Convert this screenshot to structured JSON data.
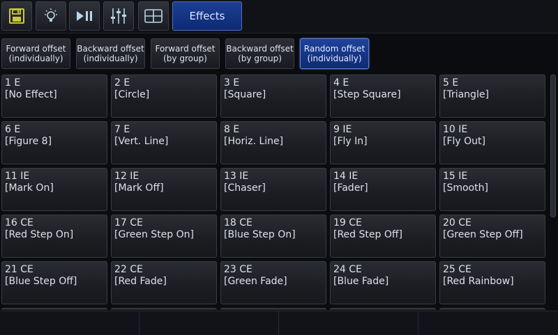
{
  "toolbar": {
    "buttons": [
      {
        "icon": "floppy-disk-icon"
      },
      {
        "icon": "lightbulb-icon"
      },
      {
        "icon": "play-pause-icon"
      },
      {
        "icon": "sliders-icon"
      },
      {
        "icon": "grid-layout-icon"
      }
    ],
    "effects_label": "Effects"
  },
  "offsets": [
    {
      "line1": "Forward offset",
      "line2": "(individually)",
      "active": false
    },
    {
      "line1": "Backward offset",
      "line2": "(individually)",
      "active": false
    },
    {
      "line1": "Forward offset",
      "line2": "(by group)",
      "active": false
    },
    {
      "line1": "Backward offset",
      "line2": "(by group)",
      "active": false
    },
    {
      "line1": "Random offset",
      "line2": "(individually)",
      "active": true
    }
  ],
  "effects": [
    {
      "id": "1 E",
      "name": "[No Effect]"
    },
    {
      "id": "2 E",
      "name": "[Circle]"
    },
    {
      "id": "3 E",
      "name": "[Square]"
    },
    {
      "id": "4 E",
      "name": "[Step Square]"
    },
    {
      "id": "5 E",
      "name": "[Triangle]"
    },
    {
      "id": "6 E",
      "name": "[Figure 8]"
    },
    {
      "id": "7 E",
      "name": "[Vert. Line]"
    },
    {
      "id": "8 E",
      "name": "[Horiz. Line]"
    },
    {
      "id": "9 IE",
      "name": "[Fly In]"
    },
    {
      "id": "10 IE",
      "name": "[Fly Out]"
    },
    {
      "id": "11 IE",
      "name": "[Mark On]"
    },
    {
      "id": "12 IE",
      "name": "[Mark Off]"
    },
    {
      "id": "13 IE",
      "name": "[Chaser]"
    },
    {
      "id": "14 IE",
      "name": "[Fader]"
    },
    {
      "id": "15 IE",
      "name": "[Smooth]"
    },
    {
      "id": "16 CE",
      "name": "[Red Step On]"
    },
    {
      "id": "17 CE",
      "name": "[Green Step On]"
    },
    {
      "id": "18 CE",
      "name": "[Blue Step On]"
    },
    {
      "id": "19 CE",
      "name": "[Red Step Off]"
    },
    {
      "id": "20 CE",
      "name": "[Green Step Off]"
    },
    {
      "id": "21 CE",
      "name": "[Blue Step Off]"
    },
    {
      "id": "22 CE",
      "name": "[Red Fade]"
    },
    {
      "id": "23 CE",
      "name": "[Green Fade]"
    },
    {
      "id": "24 CE",
      "name": "[Blue Fade]"
    },
    {
      "id": "25 CE",
      "name": "[Red Rainbow]"
    }
  ],
  "colors": {
    "accent": "#1d3f94",
    "background": "#0b0c10",
    "button": "#2a2c33"
  }
}
